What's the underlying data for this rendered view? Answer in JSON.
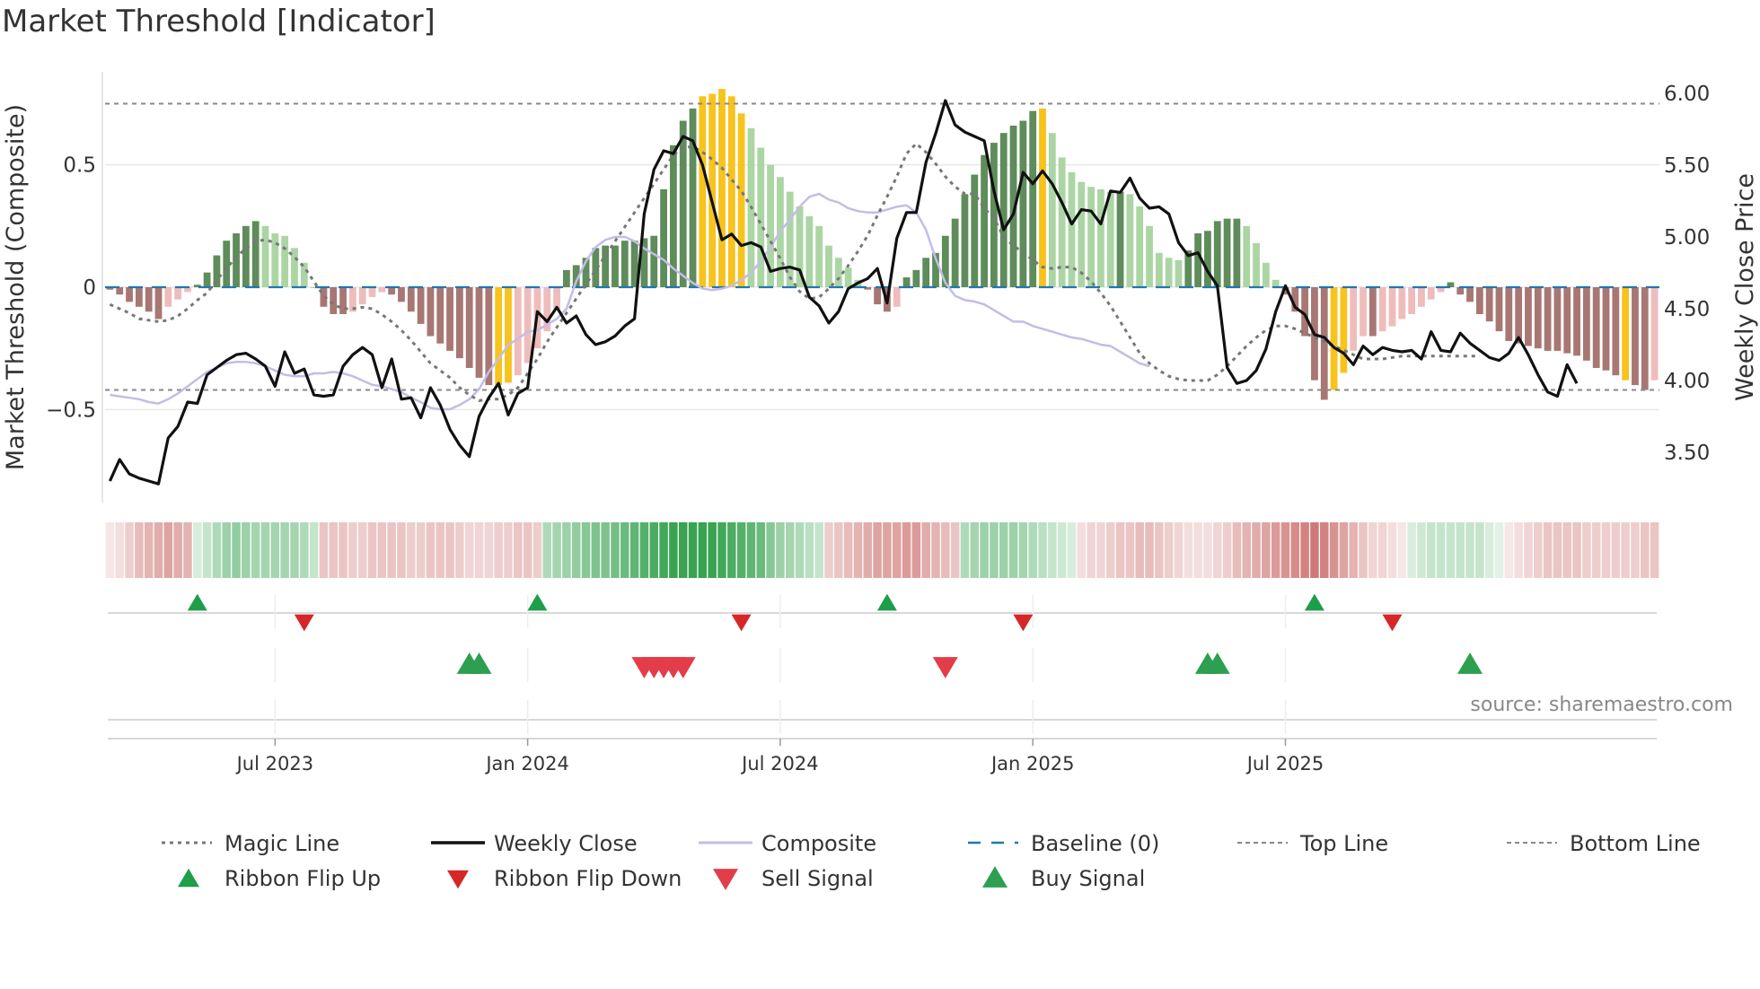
{
  "chart_data": {
    "type": "bar",
    "title": "Market Threshold [Indicator]",
    "ylabel_left": "Market Threshold (Composite)",
    "ylabel_right": "Weekly Close Price",
    "ylim_left": [
      -0.88,
      0.88
    ],
    "ylim_right": [
      3.15,
      6.15
    ],
    "yticks_left": [
      {
        "value": 0.5,
        "label": "0.5"
      },
      {
        "value": 0,
        "label": "0"
      },
      {
        "value": -0.5,
        "label": "−0.5"
      }
    ],
    "yticks_right": [
      {
        "value": 6.0,
        "label": "6.00"
      },
      {
        "value": 5.5,
        "label": "5.50"
      },
      {
        "value": 5.0,
        "label": "5.00"
      },
      {
        "value": 4.5,
        "label": "4.50"
      },
      {
        "value": 4.0,
        "label": "4.00"
      },
      {
        "value": 3.5,
        "label": "3.50"
      }
    ],
    "x_start": "2023-03-06",
    "x_end": "2025-10-20",
    "xticks": [
      {
        "week": 17,
        "label": "Jul 2023"
      },
      {
        "week": 43,
        "label": "Jan 2024"
      },
      {
        "week": 69,
        "label": "Jul 2024"
      },
      {
        "week": 95,
        "label": "Jan 2025"
      },
      {
        "week": 121,
        "label": "Jul 2025"
      }
    ],
    "top_line": 0.75,
    "bottom_line": -0.42,
    "baseline": 0,
    "composite_bars": [
      -0.01,
      -0.03,
      -0.06,
      -0.08,
      -0.1,
      -0.13,
      -0.08,
      -0.05,
      -0.02,
      0.01,
      0.06,
      0.13,
      0.19,
      0.22,
      0.25,
      0.27,
      0.25,
      0.22,
      0.21,
      0.16,
      0.1,
      0.0,
      -0.08,
      -0.11,
      -0.11,
      -0.1,
      -0.07,
      -0.04,
      -0.02,
      -0.03,
      -0.06,
      -0.1,
      -0.15,
      -0.2,
      -0.23,
      -0.26,
      -0.29,
      -0.33,
      -0.37,
      -0.4,
      -0.4,
      -0.39,
      -0.36,
      -0.31,
      -0.25,
      -0.18,
      -0.09,
      0.07,
      0.09,
      0.12,
      0.16,
      0.17,
      0.17,
      0.19,
      0.19,
      0.2,
      0.21,
      0.4,
      0.58,
      0.68,
      0.73,
      0.78,
      0.79,
      0.81,
      0.78,
      0.71,
      0.65,
      0.57,
      0.5,
      0.45,
      0.39,
      0.33,
      0.29,
      0.25,
      0.17,
      0.12,
      0.08,
      0.03,
      -0.01,
      -0.07,
      -0.1,
      -0.08,
      0.04,
      0.07,
      0.12,
      0.14,
      0.21,
      0.28,
      0.38,
      0.46,
      0.54,
      0.59,
      0.63,
      0.66,
      0.68,
      0.72,
      0.73,
      0.63,
      0.53,
      0.47,
      0.43,
      0.41,
      0.4,
      0.39,
      0.39,
      0.38,
      0.33,
      0.25,
      0.14,
      0.12,
      0.11,
      0.15,
      0.22,
      0.23,
      0.27,
      0.28,
      0.28,
      0.25,
      0.18,
      0.1,
      0.03,
      -0.03,
      -0.1,
      -0.2,
      -0.38,
      -0.46,
      -0.42,
      -0.35,
      -0.26,
      -0.2,
      -0.2,
      -0.18,
      -0.16,
      -0.13,
      -0.11,
      -0.08,
      -0.05,
      -0.02,
      0.02,
      -0.03,
      -0.06,
      -0.11,
      -0.14,
      -0.18,
      -0.22,
      -0.23,
      -0.24,
      -0.25,
      -0.26,
      -0.26,
      -0.27,
      -0.28,
      -0.3,
      -0.33,
      -0.34,
      -0.36,
      -0.38,
      -0.4,
      -0.42,
      -0.38
    ],
    "yellow_weeks": [
      40,
      41,
      61,
      62,
      63,
      64,
      65,
      96,
      126,
      127,
      156
    ],
    "weekly_close": [
      3.3,
      3.45,
      3.35,
      3.32,
      3.3,
      3.28,
      3.6,
      3.68,
      3.85,
      3.84,
      4.04,
      4.09,
      4.14,
      4.18,
      4.19,
      4.15,
      4.1,
      3.96,
      4.2,
      4.05,
      4.08,
      3.9,
      3.89,
      3.9,
      4.1,
      4.18,
      4.23,
      4.18,
      3.95,
      4.15,
      3.87,
      3.88,
      3.74,
      3.95,
      3.83,
      3.66,
      3.55,
      3.47,
      3.75,
      3.88,
      3.98,
      3.76,
      3.91,
      3.95,
      4.48,
      4.41,
      4.51,
      4.4,
      4.45,
      4.32,
      4.25,
      4.27,
      4.31,
      4.38,
      4.43,
      5.16,
      5.47,
      5.6,
      5.58,
      5.7,
      5.67,
      5.5,
      5.24,
      4.98,
      5.02,
      4.94,
      4.96,
      4.93,
      4.76,
      4.78,
      4.79,
      4.77,
      4.58,
      4.52,
      4.4,
      4.48,
      4.64,
      4.68,
      4.71,
      4.78,
      4.54,
      4.99,
      5.17,
      5.17,
      5.52,
      5.72,
      5.95,
      5.78,
      5.73,
      5.7,
      5.67,
      5.32,
      5.05,
      5.16,
      5.45,
      5.37,
      5.46,
      5.37,
      5.24,
      5.09,
      5.19,
      5.18,
      5.09,
      5.32,
      5.31,
      5.41,
      5.27,
      5.2,
      5.21,
      5.16,
      4.96,
      4.87,
      4.89,
      4.76,
      4.66,
      4.09,
      3.98,
      4.0,
      4.07,
      4.22,
      4.48,
      4.66,
      4.51,
      4.46,
      4.32,
      4.3,
      4.23,
      4.19,
      4.11,
      4.24,
      4.18,
      4.23,
      4.21,
      4.2,
      4.21,
      4.15,
      4.34,
      4.21,
      4.2,
      4.33,
      4.26,
      4.21,
      4.16,
      4.14,
      4.19,
      4.3,
      4.18,
      4.04,
      3.92,
      3.89,
      4.11,
      3.98
    ],
    "magic_line": [
      4.53,
      4.5,
      4.47,
      4.43,
      4.42,
      4.41,
      4.42,
      4.45,
      4.5,
      4.56,
      4.61,
      4.7,
      4.78,
      4.86,
      4.92,
      4.97,
      4.98,
      4.96,
      4.92,
      4.86,
      4.79,
      4.69,
      4.59,
      4.53,
      4.5,
      4.5,
      4.51,
      4.5,
      4.46,
      4.41,
      4.35,
      4.28,
      4.2,
      4.12,
      4.07,
      4.02,
      3.95,
      3.9,
      3.86,
      3.87,
      3.87,
      3.9,
      3.95,
      4.05,
      4.15,
      4.27,
      4.37,
      4.47,
      4.57,
      4.67,
      4.77,
      4.87,
      4.97,
      5.07,
      5.17,
      5.27,
      5.37,
      5.47,
      5.57,
      5.62,
      5.63,
      5.59,
      5.54,
      5.48,
      5.4,
      5.32,
      5.21,
      5.09,
      4.97,
      4.85,
      4.72,
      4.62,
      4.57,
      4.58,
      4.64,
      4.71,
      4.8,
      4.9,
      5.01,
      5.15,
      5.28,
      5.42,
      5.58,
      5.65,
      5.59,
      5.51,
      5.42,
      5.35,
      5.3,
      5.3,
      5.2,
      5.13,
      5.0,
      4.94,
      4.89,
      4.84,
      4.79,
      4.78,
      4.79,
      4.79,
      4.75,
      4.69,
      4.61,
      4.52,
      4.41,
      4.3,
      4.19,
      4.12,
      4.07,
      4.03,
      4.01,
      4.0,
      4.0,
      4.0,
      4.04,
      4.1,
      4.17,
      4.24,
      4.3,
      4.35,
      4.38,
      4.38,
      4.36,
      4.33,
      4.3,
      4.27,
      4.24,
      4.21,
      4.18,
      4.15,
      4.15,
      4.15,
      4.16,
      4.17,
      4.17,
      4.17,
      4.17,
      4.17,
      4.17,
      4.17,
      4.17,
      4.17
    ],
    "composite_line": [
      3.9,
      3.89,
      3.88,
      3.87,
      3.85,
      3.84,
      3.87,
      3.91,
      3.96,
      4.01,
      4.06,
      4.09,
      4.12,
      4.13,
      4.13,
      4.12,
      4.1,
      4.07,
      4.04,
      4.03,
      4.03,
      4.05,
      4.05,
      4.06,
      4.05,
      4.03,
      4.0,
      3.97,
      3.96,
      3.94,
      3.92,
      3.88,
      3.85,
      3.81,
      3.8,
      3.8,
      3.83,
      3.87,
      3.94,
      4.06,
      4.15,
      4.25,
      4.29,
      4.34,
      4.35,
      4.39,
      4.43,
      4.5,
      4.69,
      4.83,
      4.93,
      4.98,
      5.0,
      5.0,
      4.97,
      4.92,
      4.88,
      4.84,
      4.78,
      4.73,
      4.68,
      4.64,
      4.63,
      4.64,
      4.66,
      4.7,
      4.75,
      4.83,
      4.93,
      5.04,
      5.12,
      5.21,
      5.28,
      5.3,
      5.26,
      5.24,
      5.2,
      5.18,
      5.17,
      5.17,
      5.19,
      5.21,
      5.22,
      5.17,
      5.05,
      4.85,
      4.68,
      4.59,
      4.56,
      4.55,
      4.53,
      4.49,
      4.45,
      4.41,
      4.41,
      4.38,
      4.36,
      4.34,
      4.32,
      4.3,
      4.29,
      4.27,
      4.25,
      4.24,
      4.2,
      4.16,
      4.12,
      4.1
    ],
    "ribbon_intensity": [
      -0.15,
      -0.2,
      -0.3,
      -0.4,
      -0.45,
      -0.5,
      -0.55,
      -0.5,
      -0.45,
      0.2,
      0.3,
      0.4,
      0.5,
      0.55,
      0.5,
      0.45,
      0.45,
      0.45,
      0.45,
      0.45,
      0.4,
      0.3,
      -0.35,
      -0.35,
      -0.35,
      -0.3,
      -0.3,
      -0.35,
      -0.35,
      -0.35,
      -0.35,
      -0.3,
      -0.3,
      -0.35,
      -0.35,
      -0.35,
      -0.3,
      -0.25,
      -0.25,
      -0.25,
      -0.3,
      -0.3,
      -0.35,
      -0.35,
      -0.3,
      0.4,
      0.45,
      0.5,
      0.55,
      0.6,
      0.65,
      0.65,
      0.7,
      0.75,
      0.8,
      0.85,
      0.9,
      0.95,
      1.0,
      1.0,
      1.0,
      1.0,
      1.0,
      0.95,
      0.9,
      0.85,
      0.8,
      0.75,
      0.6,
      0.5,
      0.45,
      0.4,
      0.35,
      0.3,
      -0.3,
      -0.35,
      -0.4,
      -0.45,
      -0.5,
      -0.55,
      -0.55,
      -0.55,
      -0.6,
      -0.6,
      -0.5,
      -0.45,
      -0.4,
      -0.35,
      0.4,
      0.45,
      0.5,
      0.5,
      0.5,
      0.5,
      0.45,
      0.4,
      0.35,
      0.3,
      0.25,
      0.2,
      -0.2,
      -0.25,
      -0.25,
      -0.3,
      -0.35,
      -0.35,
      -0.4,
      -0.4,
      -0.35,
      -0.3,
      -0.25,
      -0.2,
      -0.2,
      -0.2,
      -0.25,
      -0.3,
      -0.4,
      -0.45,
      -0.5,
      -0.55,
      -0.6,
      -0.65,
      -0.7,
      -0.75,
      -0.8,
      -0.75,
      -0.65,
      -0.55,
      -0.45,
      -0.35,
      -0.25,
      -0.25,
      -0.2,
      -0.15,
      0.2,
      0.25,
      0.3,
      0.3,
      0.3,
      0.3,
      0.3,
      0.3,
      0.2,
      0.15,
      -0.15,
      -0.2,
      -0.25,
      -0.3,
      -0.35,
      -0.35,
      -0.35,
      -0.35,
      -0.3,
      -0.3,
      -0.3,
      -0.3,
      -0.3,
      -0.3,
      -0.35,
      -0.35
    ],
    "ribbon_flip_up": [
      9,
      44,
      80,
      124
    ],
    "ribbon_flip_down": [
      20,
      65,
      94,
      132
    ],
    "buy_signals": [
      37,
      38,
      113,
      114,
      140
    ],
    "sell_signals": [
      55,
      56,
      57,
      58,
      59,
      86
    ],
    "legend": [
      {
        "key": "magic",
        "label": "Magic Line"
      },
      {
        "key": "close",
        "label": "Weekly Close"
      },
      {
        "key": "composite",
        "label": "Composite"
      },
      {
        "key": "baseline",
        "label": "Baseline (0)"
      },
      {
        "key": "top",
        "label": "Top Line"
      },
      {
        "key": "bottom",
        "label": "Bottom Line"
      },
      {
        "key": "flip_up",
        "label": "Ribbon Flip Up"
      },
      {
        "key": "flip_down",
        "label": "Ribbon Flip Down"
      },
      {
        "key": "sell",
        "label": "Sell Signal"
      },
      {
        "key": "buy",
        "label": "Buy Signal"
      }
    ],
    "source": "source: sharemaestro.com"
  },
  "colors": {
    "bull_dark": "#5e8c5a",
    "bull_light": "#acd5a4",
    "bear_dark": "#a87773",
    "bear_light": "#efbcbc",
    "yellow": "#f7c31c",
    "close_line": "#111111",
    "composite_line": "#c3bde6",
    "magic_line": "#777777",
    "baseline": "#1f77b4",
    "ribbon_green": "#2e9e48",
    "ribbon_red": "#c0504d",
    "flip_up": "#1e9e4a",
    "flip_down": "#d62728",
    "buy": "#2ca050",
    "sell": "#e23d48"
  }
}
